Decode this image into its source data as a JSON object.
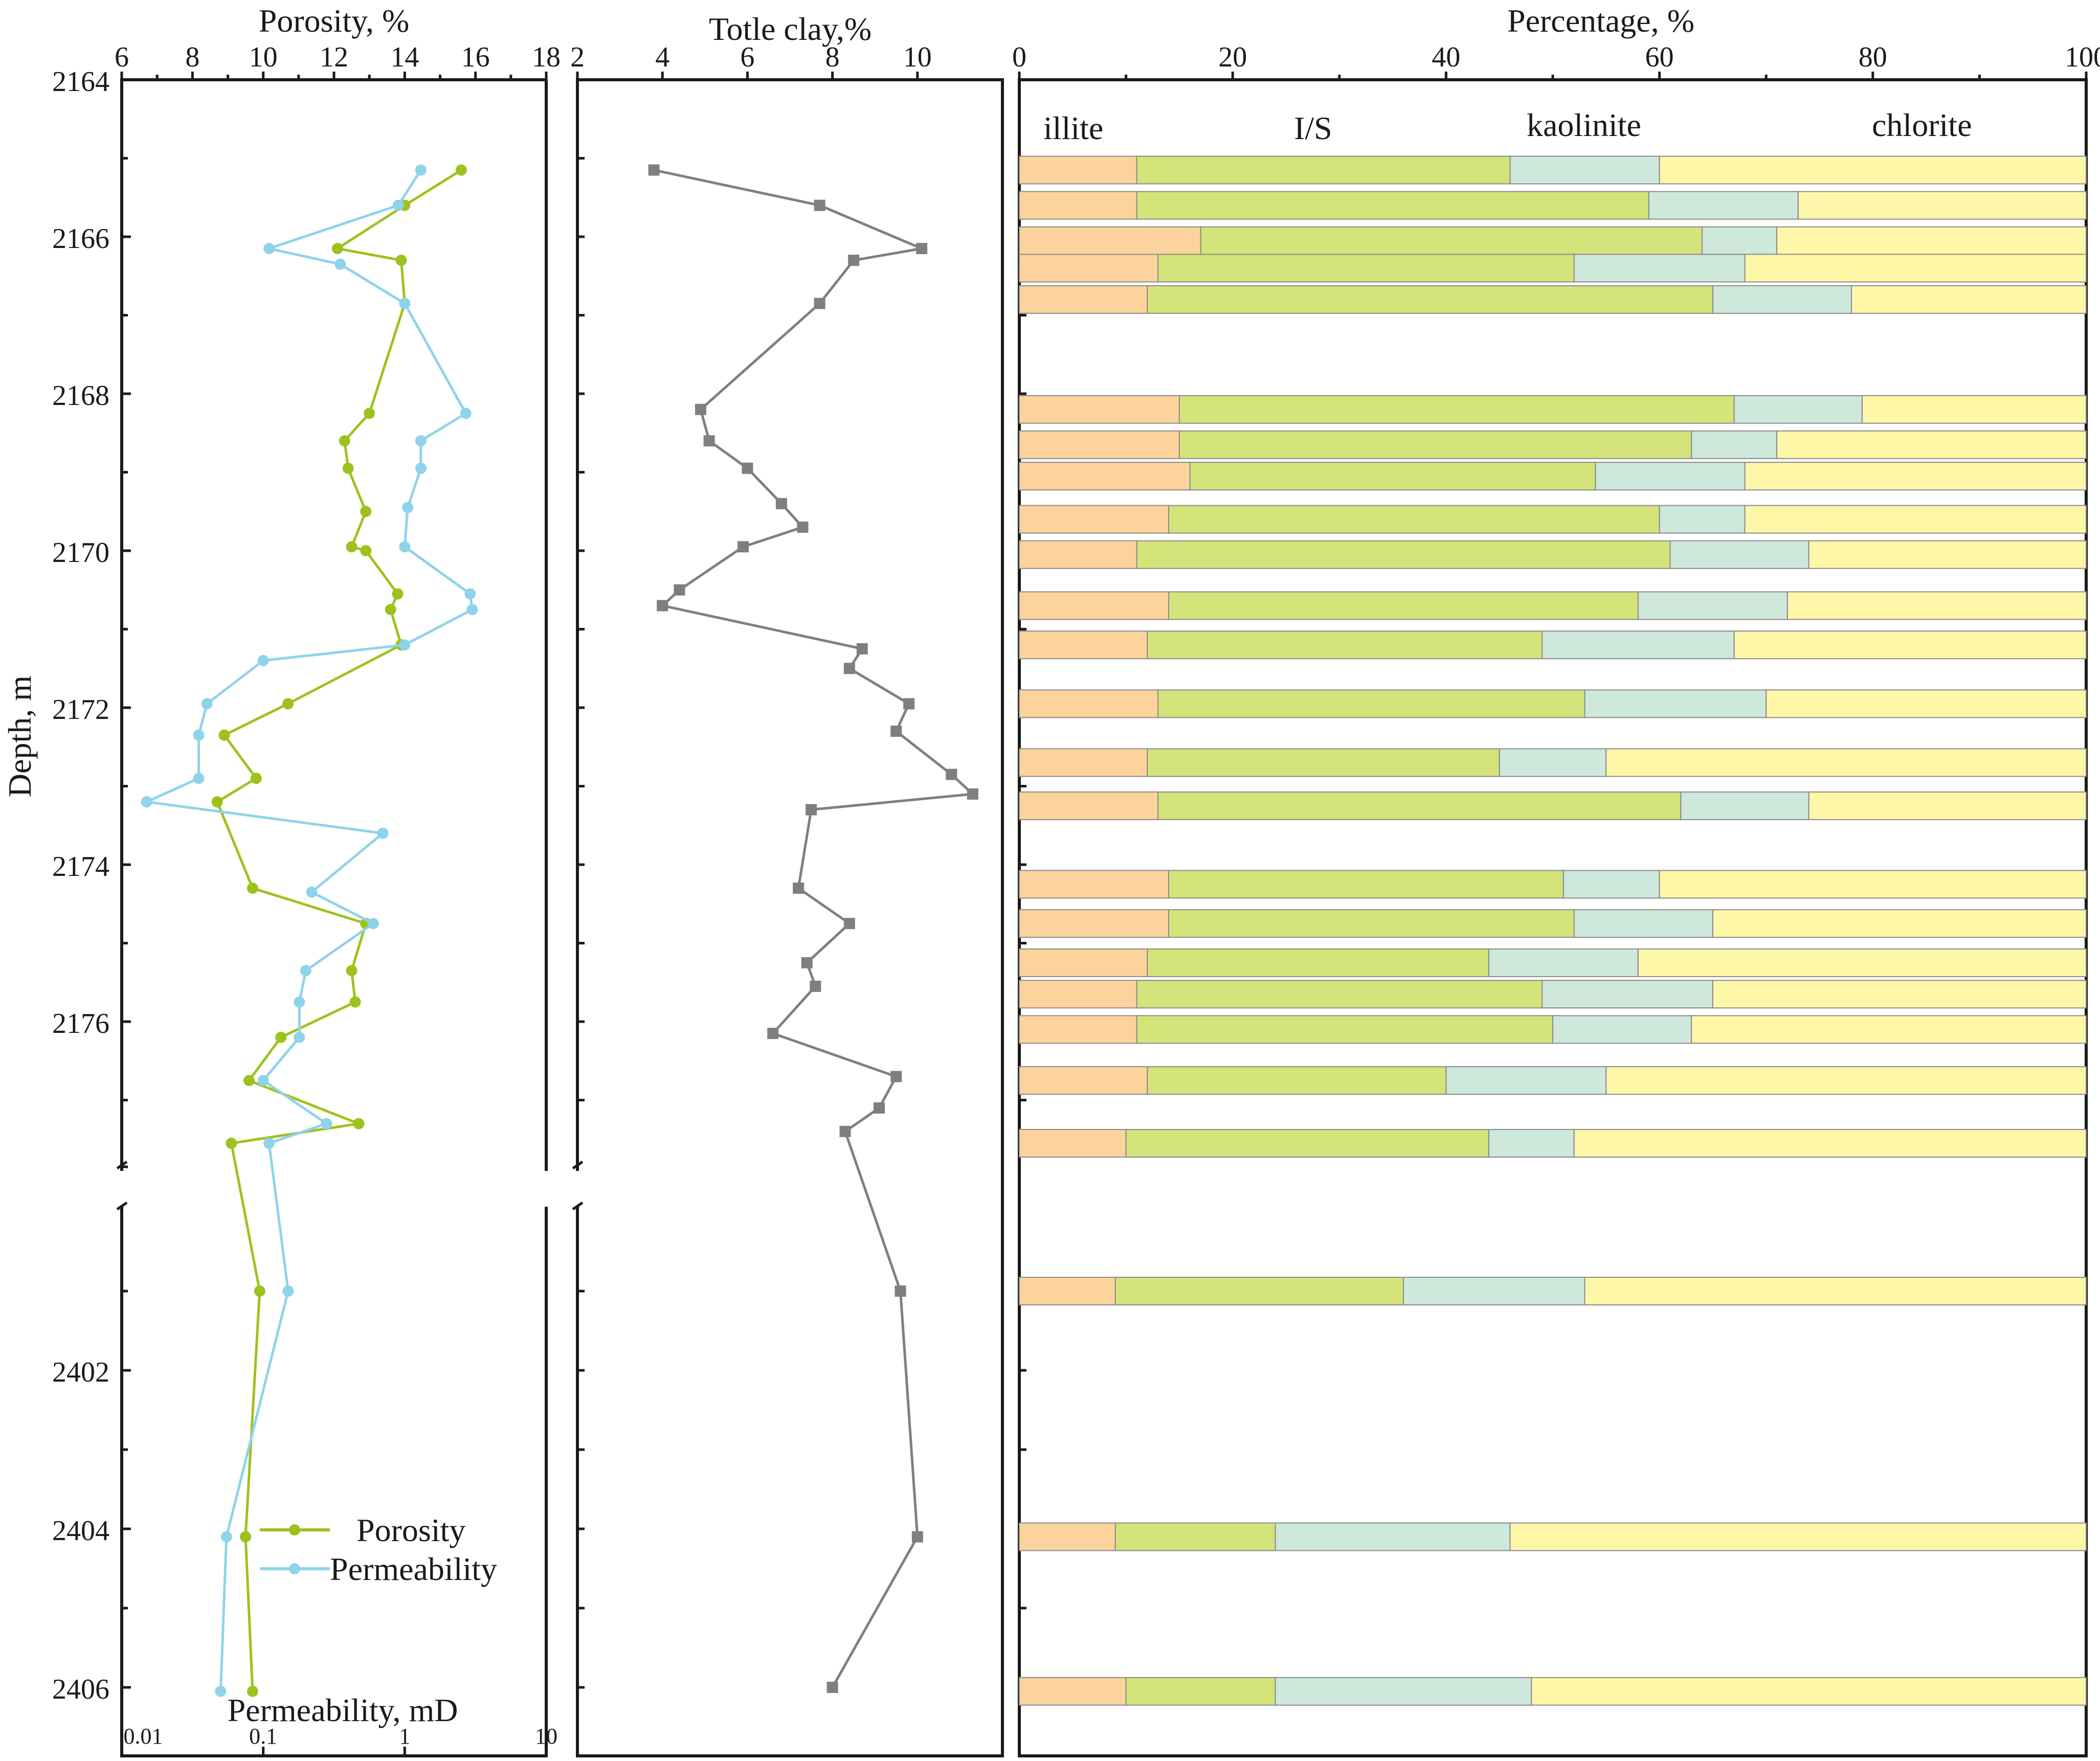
{
  "colors": {
    "porosity": "#9dc21d",
    "permeability": "#8fd3ea",
    "clay": "#7f7f7f",
    "illite": "#fdd39d",
    "is": "#d4e37a",
    "kaolinite": "#cfe8dc",
    "chlorite": "#fff7a8",
    "bar_edge": "#8a8a8a"
  },
  "chart_data": [
    {
      "type": "line",
      "title": "Porosity, %",
      "xlabel_top": "Porosity, %",
      "xlabel_bottom": "Permeability, mD",
      "ylabel": "Depth, m",
      "porosity_axis": {
        "range": [
          6,
          18
        ],
        "ticks": [
          "6",
          "8",
          "10",
          "12",
          "14",
          "16",
          "18"
        ]
      },
      "permeability_axis": {
        "scale": "log",
        "range": [
          0.01,
          10
        ],
        "ticks": [
          "0.01",
          "0.1",
          "1",
          "10"
        ]
      },
      "depth_ticks_upper": [
        "2164",
        "2166",
        "2168",
        "2170",
        "2172",
        "2174",
        "2176"
      ],
      "depth_ticks_lower": [
        "2402",
        "2404",
        "2406"
      ],
      "axis_break": "between 2178 and 2400",
      "legend": [
        "Porosity",
        "Permeability"
      ],
      "legend_position": "bottom-right",
      "series": [
        {
          "name": "Porosity",
          "depth": [
            2165.15,
            2165.6,
            2166.15,
            2166.3,
            2166.85,
            2168.25,
            2168.6,
            2168.95,
            2169.5,
            2169.95,
            2170.0,
            2170.55,
            2170.75,
            2171.2,
            2171.95,
            2172.35,
            2172.9,
            2173.2,
            2174.3,
            2174.75,
            2175.35,
            2175.75,
            2176.2,
            2176.75,
            2177.3,
            2177.55,
            2401.0,
            2404.1,
            2406.05
          ],
          "values": [
            15.6,
            14.0,
            12.1,
            13.9,
            14.0,
            13.0,
            12.3,
            12.4,
            12.9,
            12.5,
            12.9,
            13.8,
            13.6,
            13.9,
            10.7,
            8.9,
            9.8,
            8.7,
            9.7,
            12.9,
            12.5,
            12.6,
            10.5,
            9.6,
            12.7,
            9.1,
            9.9,
            9.5,
            9.7
          ]
        },
        {
          "name": "Permeability",
          "depth": [
            2165.15,
            2165.6,
            2166.15,
            2166.35,
            2166.85,
            2168.25,
            2168.6,
            2168.95,
            2169.45,
            2169.95,
            2170.55,
            2170.75,
            2171.2,
            2171.4,
            2171.95,
            2172.35,
            2172.9,
            2173.2,
            2173.6,
            2174.35,
            2174.75,
            2175.35,
            2175.75,
            2176.2,
            2176.75,
            2177.3,
            2177.55,
            2401.0,
            2404.1,
            2406.05
          ],
          "values": [
            1.3,
            0.9,
            0.11,
            0.35,
            1.0,
            2.7,
            1.3,
            1.3,
            1.05,
            1.0,
            2.9,
            3.0,
            1.0,
            0.1,
            0.04,
            0.035,
            0.035,
            0.015,
            0.7,
            0.22,
            0.6,
            0.2,
            0.18,
            0.18,
            0.1,
            0.28,
            0.11,
            0.15,
            0.055,
            0.05
          ]
        }
      ]
    },
    {
      "type": "line",
      "title": "Totle clay,%",
      "xlabel": "Totle clay,%",
      "x_axis": {
        "range": [
          2,
          12
        ],
        "ticks": [
          "2",
          "4",
          "6",
          "8",
          "10"
        ]
      },
      "series": [
        {
          "name": "Totle clay",
          "depth": [
            2165.15,
            2165.6,
            2166.15,
            2166.3,
            2166.85,
            2168.2,
            2168.6,
            2168.95,
            2169.4,
            2169.7,
            2169.95,
            2170.5,
            2170.7,
            2171.25,
            2171.5,
            2171.95,
            2172.3,
            2172.85,
            2173.1,
            2173.3,
            2174.3,
            2174.75,
            2175.25,
            2175.55,
            2176.15,
            2176.7,
            2177.1,
            2177.4,
            2401.0,
            2404.1,
            2406.0
          ],
          "values": [
            3.8,
            7.7,
            10.1,
            8.5,
            7.7,
            4.9,
            5.1,
            6.0,
            6.8,
            7.3,
            5.9,
            4.4,
            4.0,
            8.7,
            8.4,
            9.8,
            9.5,
            10.8,
            11.3,
            7.5,
            7.2,
            8.4,
            7.4,
            7.6,
            6.6,
            9.5,
            9.1,
            8.3,
            9.6,
            10.0,
            8.0
          ]
        }
      ]
    },
    {
      "type": "bar",
      "stacked": true,
      "orientation": "horizontal",
      "title": "Percentage, %",
      "x_axis": {
        "range": [
          0,
          100
        ],
        "ticks": [
          "0",
          "20",
          "40",
          "60",
          "80",
          "100"
        ]
      },
      "categories": [
        "illite",
        "I/S",
        "kaolinite",
        "chlorite"
      ],
      "legend": [
        "illite",
        "I/S",
        "kaolinite",
        "chlorite"
      ],
      "bars": [
        {
          "depth": 2165.15,
          "values": [
            11,
            35,
            14,
            40
          ]
        },
        {
          "depth": 2165.6,
          "values": [
            11,
            48,
            14,
            27
          ]
        },
        {
          "depth": 2166.05,
          "values": [
            17,
            47,
            7,
            29
          ]
        },
        {
          "depth": 2166.4,
          "values": [
            13,
            39,
            16,
            32
          ]
        },
        {
          "depth": 2166.8,
          "values": [
            12,
            53,
            13,
            22
          ]
        },
        {
          "depth": 2168.2,
          "values": [
            15,
            52,
            12,
            21
          ]
        },
        {
          "depth": 2168.65,
          "values": [
            15,
            48,
            8,
            29
          ]
        },
        {
          "depth": 2169.05,
          "values": [
            16,
            38,
            14,
            32
          ]
        },
        {
          "depth": 2169.6,
          "values": [
            14,
            46,
            8,
            32
          ]
        },
        {
          "depth": 2170.05,
          "values": [
            11,
            50,
            13,
            26
          ]
        },
        {
          "depth": 2170.7,
          "values": [
            14,
            44,
            14,
            28
          ]
        },
        {
          "depth": 2171.2,
          "values": [
            12,
            37,
            18,
            33
          ]
        },
        {
          "depth": 2171.95,
          "values": [
            13,
            40,
            17,
            30
          ]
        },
        {
          "depth": 2172.7,
          "values": [
            12,
            33,
            10,
            45
          ]
        },
        {
          "depth": 2173.25,
          "values": [
            13,
            49,
            12,
            26
          ]
        },
        {
          "depth": 2174.25,
          "values": [
            14,
            37,
            9,
            40
          ]
        },
        {
          "depth": 2174.75,
          "values": [
            14,
            38,
            13,
            35
          ]
        },
        {
          "depth": 2175.25,
          "values": [
            12,
            32,
            14,
            42
          ]
        },
        {
          "depth": 2175.65,
          "values": [
            11,
            38,
            16,
            35
          ]
        },
        {
          "depth": 2176.1,
          "values": [
            11,
            39,
            13,
            37
          ]
        },
        {
          "depth": 2176.75,
          "values": [
            12,
            28,
            15,
            45
          ]
        },
        {
          "depth": 2177.55,
          "values": [
            10,
            34,
            8,
            48
          ]
        },
        {
          "depth": 2401.0,
          "values": [
            9,
            27,
            17,
            47
          ]
        },
        {
          "depth": 2404.1,
          "values": [
            9,
            15,
            22,
            54
          ]
        },
        {
          "depth": 2406.05,
          "values": [
            10,
            14,
            24,
            52
          ]
        }
      ]
    }
  ]
}
